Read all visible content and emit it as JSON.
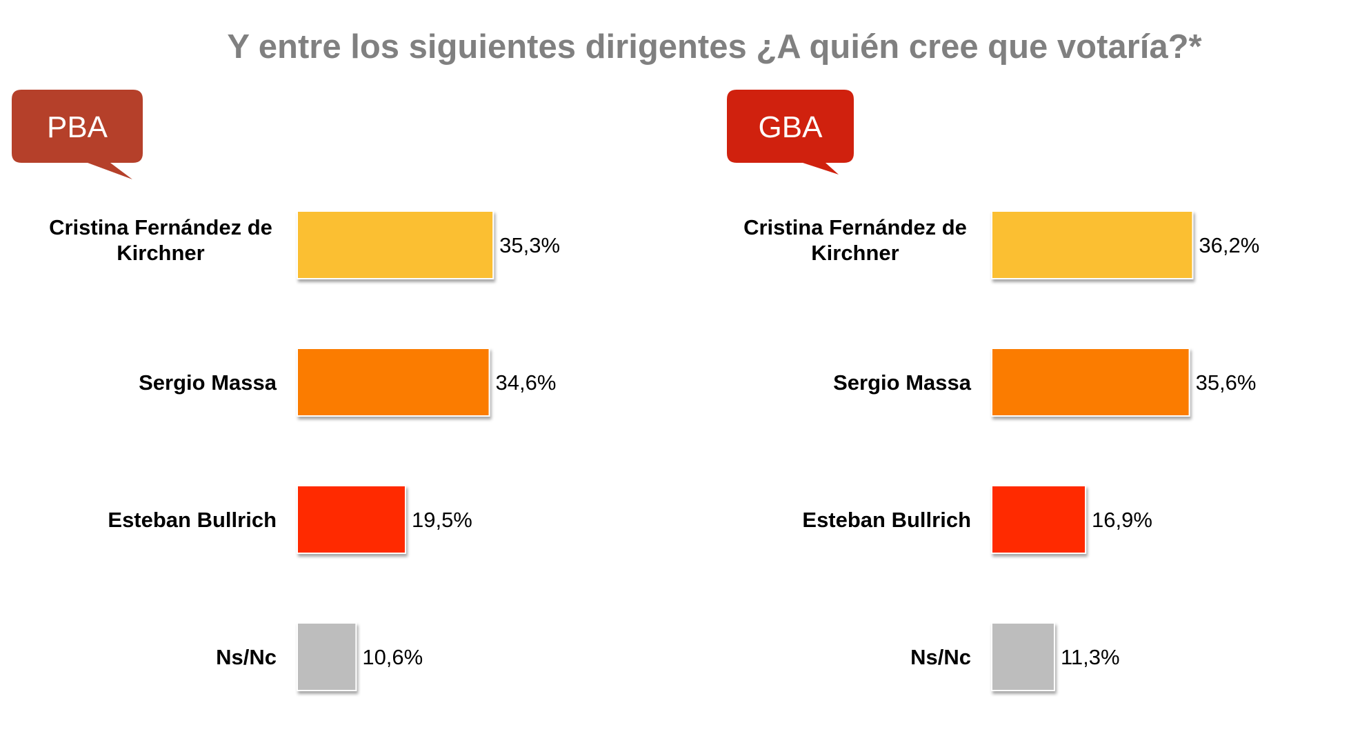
{
  "title": "Y entre los siguientes dirigentes ¿A quién cree que votaría?*",
  "chart_data": [
    {
      "type": "bar",
      "orientation": "horizontal",
      "badge": "PBA",
      "badge_color": "#b5402a",
      "categories": [
        "Cristina Fernández de Kirchner",
        "Sergio Massa",
        "Esteban Bullrich",
        "Ns/Nc"
      ],
      "values": [
        35.3,
        34.6,
        19.5,
        10.6
      ],
      "value_labels": [
        "35,3%",
        "34,6%",
        "19,5%",
        "10,6%"
      ],
      "colors": [
        "#fbbf32",
        "#fb7c01",
        "#ff2a00",
        "#bdbdbd"
      ],
      "xlim": [
        0,
        40
      ],
      "grid": false,
      "legend": "none"
    },
    {
      "type": "bar",
      "orientation": "horizontal",
      "badge": "GBA",
      "badge_color": "#d0210e",
      "categories": [
        "Cristina Fernández de Kirchner",
        "Sergio Massa",
        "Esteban Bullrich",
        "Ns/Nc"
      ],
      "values": [
        36.2,
        35.6,
        16.9,
        11.3
      ],
      "value_labels": [
        "36,2%",
        "35,6%",
        "16,9%",
        "11,3%"
      ],
      "colors": [
        "#fbbf32",
        "#fb7c01",
        "#ff2a00",
        "#bdbdbd"
      ],
      "xlim": [
        0,
        40
      ],
      "grid": false,
      "legend": "none"
    }
  ]
}
